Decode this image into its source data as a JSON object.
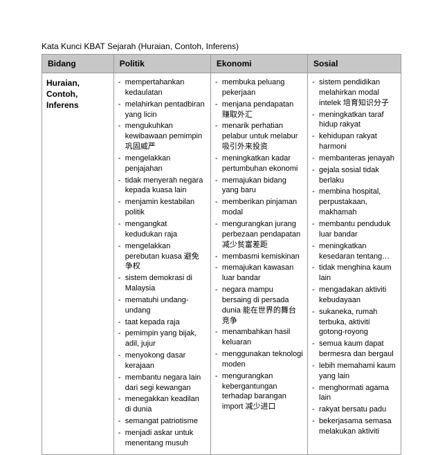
{
  "caption": "Kata Kunci KBAT Sejarah (Huraian, Contoh, Inferens)",
  "headers": [
    "Bidang",
    "Politik",
    "Ekonomi",
    "Sosial"
  ],
  "row_label": "Huraian, Contoh, Inferens",
  "politik": [
    "mempertahankan kedaulatan",
    "melahirkan pentadbiran yang licin",
    "mengukuhkan kewibawaan pemimpin 巩固威严",
    "mengelakkan penjajahan",
    "tidak menyerah negara kepada kuasa lain",
    "menjamin kestabilan politik",
    "mengangkat kedudukan raja",
    "mengelakkan perebutan kuasa 避免争权",
    "sistem demokrasi di Malaysia",
    "mematuhi undang-undang",
    "taat kepada raja",
    "pemimpin yang bijak, adil, jujur",
    "menyokong dasar kerajaan",
    "membantu negara lain dari segi kewangan",
    "menegakkan keadilan di dunia",
    "semangat patriotisme",
    "menjadi askar untuk menentang musuh"
  ],
  "ekonomi": [
    "membuka peluang pekerjaan",
    "menjana pendapatan 赚取外汇",
    "menarik perhatian pelabur untuk melabur 吸引外来投资",
    "meningkatkan kadar pertumbuhan ekonomi",
    "memajukan bidang yang baru",
    "memberikan pinjaman modal",
    "mengurangkan jurang perbezaan pendapatan 减少贫富差距",
    "membasmi kemiskinan",
    "memajukan kawasan luar bandar",
    "negara mampu bersaing di persada dunia 能在世界的舞台竞争",
    "menambahkan hasil keluaran",
    "menggunakan teknologi moden",
    "mengurangkan kebergantungan terhadap barangan import 减少进口"
  ],
  "sosial": [
    "sistem pendidikan melahirkan modal intelek 培育知识分子",
    "meningkatkan taraf hidup rakyat",
    "kehidupan rakyat harmoni",
    "membanteras jenayah",
    "gejala sosial tidak berlaku",
    "membina hospital, perpustakaan, makhamah",
    "membantu penduduk luar bandar",
    "meningkatkan kesedaran tentang…",
    "tidak menghina kaum lain",
    "mengadakan aktiviti kebudayaan",
    "sukaneka, rumah terbuka, aktiviti gotong-royong",
    "semua kaum dapat bermesra dan bergaul",
    "lebih memahami kaum yang lain",
    "menghormati agama lain",
    "rakyat bersatu padu",
    "bekerjasama semasa melakukan aktiviti"
  ]
}
